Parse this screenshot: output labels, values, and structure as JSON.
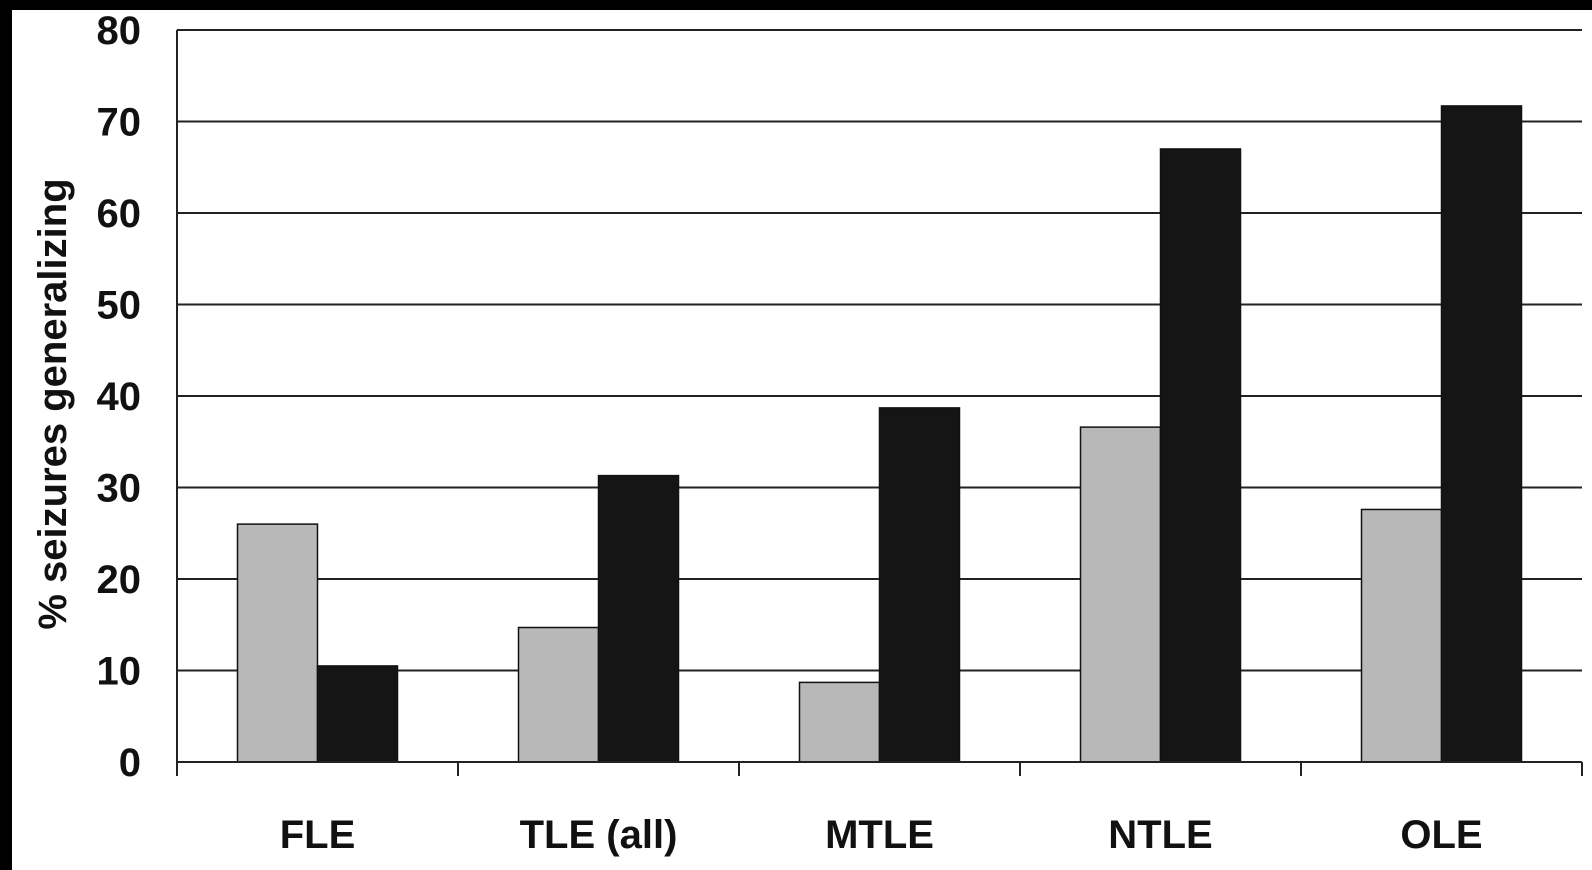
{
  "chart_data": {
    "type": "bar",
    "title": "",
    "xlabel": "",
    "ylabel": "% seizures generalizing",
    "ylim": [
      0,
      80
    ],
    "yticks": [
      0,
      10,
      20,
      30,
      40,
      50,
      60,
      70,
      80
    ],
    "grid": true,
    "legend": "none",
    "categories": [
      "FLE",
      "TLE (all)",
      "MTLE",
      "NTLE",
      "OLE"
    ],
    "series": [
      {
        "color": "#b8b8b8",
        "values": [
          26,
          14.7,
          8.7,
          36.6,
          27.6
        ]
      },
      {
        "color": "#151515",
        "values": [
          10.5,
          31.3,
          38.7,
          67,
          71.7
        ]
      }
    ]
  }
}
